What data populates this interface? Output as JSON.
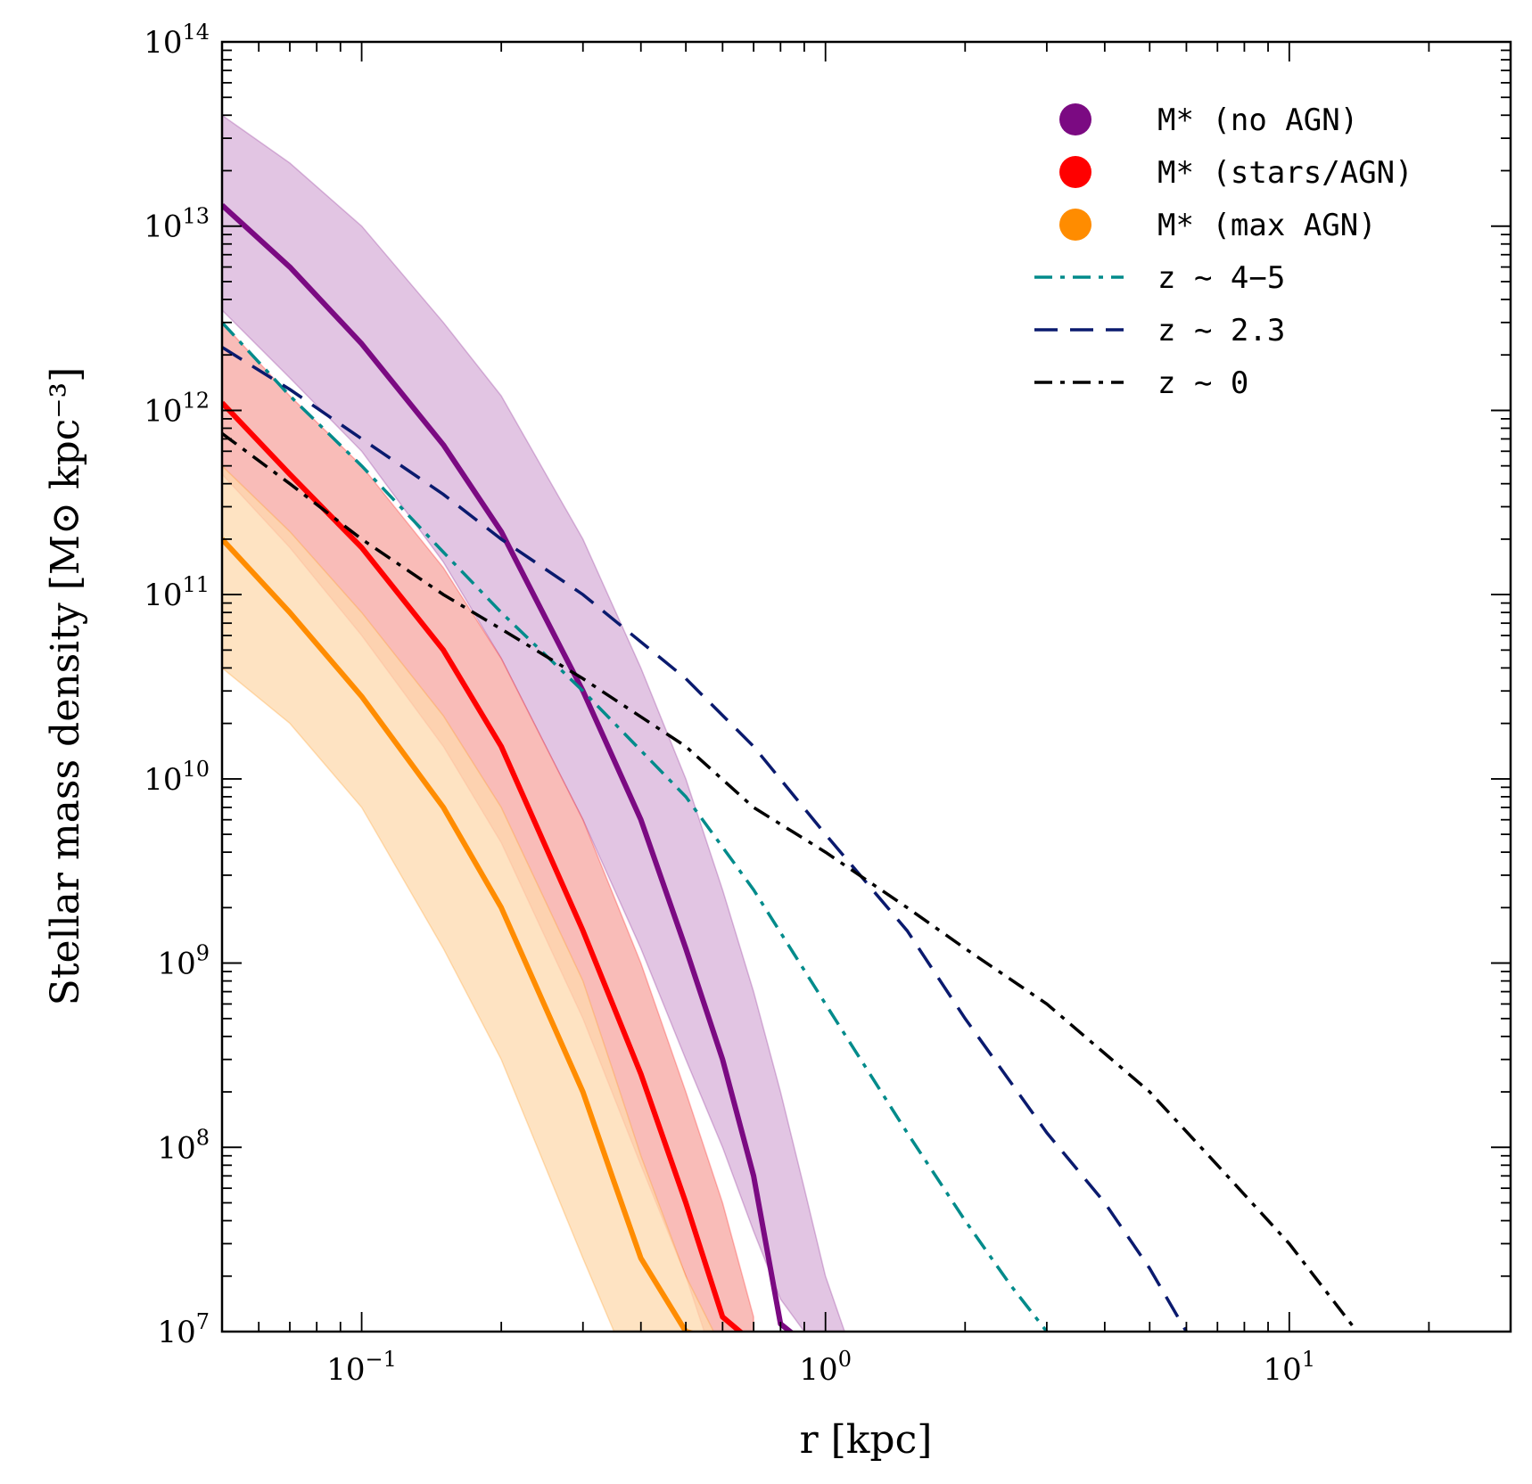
{
  "chart_data": {
    "type": "line",
    "xlabel": "r [kpc]",
    "ylabel": "Stellar mass density [M⊙ kpc⁻³]",
    "xscale": "log",
    "yscale": "log",
    "xlim": [
      0.05,
      30
    ],
    "ylim": [
      10000000.0,
      100000000000000.0
    ],
    "grid": false,
    "legend_position": "top-right",
    "x_tick_labels": [
      {
        "value": 0.1,
        "base": "10",
        "exp": "−1"
      },
      {
        "value": 1,
        "base": "10",
        "exp": "0"
      },
      {
        "value": 10,
        "base": "10",
        "exp": "1"
      }
    ],
    "y_tick_labels": [
      {
        "value": 10000000.0,
        "base": "10",
        "exp": "7"
      },
      {
        "value": 100000000.0,
        "base": "10",
        "exp": "8"
      },
      {
        "value": 1000000000.0,
        "base": "10",
        "exp": "9"
      },
      {
        "value": 10000000000.0,
        "base": "10",
        "exp": "10"
      },
      {
        "value": 100000000000.0,
        "base": "10",
        "exp": "11"
      },
      {
        "value": 1000000000000.0,
        "base": "10",
        "exp": "12"
      },
      {
        "value": 10000000000000.0,
        "base": "10",
        "exp": "13"
      },
      {
        "value": 100000000000000.0,
        "base": "10",
        "exp": "14"
      }
    ],
    "bands": [
      {
        "name": "M* (no AGN)",
        "color": "#7b0a82",
        "fill": "#d8b2da",
        "marker": "circle",
        "x": [
          0.05,
          0.07,
          0.1,
          0.15,
          0.2,
          0.3,
          0.4,
          0.5,
          0.6,
          0.7,
          0.8,
          0.9,
          1.0,
          1.1
        ],
        "lower": [
          3500000000000.0,
          1500000000000.0,
          600000000000.0,
          150000000000.0,
          45000000000.0,
          6000000000.0,
          1200000000.0,
          300000000.0,
          100000000.0,
          35000000.0,
          15000000.0,
          10000000.0,
          null,
          null
        ],
        "median": [
          13000000000000.0,
          6000000000000.0,
          2300000000000.0,
          650000000000.0,
          220000000000.0,
          30000000000.0,
          6000000000.0,
          1200000000.0,
          300000000.0,
          70000000.0,
          11000000.0,
          null,
          null,
          null
        ],
        "upper": [
          40000000000000.0,
          22000000000000.0,
          10000000000000.0,
          3000000000000.0,
          1200000000000.0,
          200000000000.0,
          40000000000.0,
          10000000000.0,
          2500000000.0,
          700000000.0,
          200000000.0,
          60000000.0,
          20000000.0,
          10000000.0
        ]
      },
      {
        "name": "M* (stars/AGN)",
        "color": "#ff0000",
        "fill": "#f7a6a0",
        "marker": "circle",
        "x": [
          0.05,
          0.07,
          0.1,
          0.15,
          0.2,
          0.3,
          0.4,
          0.5,
          0.6,
          0.7
        ],
        "lower": [
          450000000000.0,
          180000000000.0,
          60000000000.0,
          15000000000.0,
          4500000000.0,
          500000000.0,
          80000000.0,
          20000000.0,
          null,
          null
        ],
        "median": [
          1100000000000.0,
          450000000000.0,
          180000000000.0,
          50000000000.0,
          15000000000.0,
          1500000000.0,
          250000000.0,
          50000000.0,
          12000000.0,
          null
        ],
        "upper": [
          3000000000000.0,
          1200000000000.0,
          500000000000.0,
          140000000000.0,
          45000000000.0,
          6000000000.0,
          1000000000.0,
          200000000.0,
          50000000.0,
          12000000.0
        ]
      },
      {
        "name": "M* (max AGN)",
        "color": "#ff8c00",
        "fill": "#fdd9ae",
        "marker": "circle",
        "x": [
          0.05,
          0.07,
          0.1,
          0.15,
          0.2,
          0.3,
          0.35,
          0.4,
          0.5,
          0.6
        ],
        "lower": [
          40000000000.0,
          20000000000.0,
          7000000000.0,
          1200000000.0,
          300000000.0,
          25000000.0,
          10000000.0,
          null,
          null,
          null
        ],
        "median": [
          200000000000.0,
          80000000000.0,
          28000000000.0,
          7000000000.0,
          2000000000.0,
          200000000.0,
          65000000.0,
          25000000.0,
          10000000.0,
          null
        ],
        "upper": [
          500000000000.0,
          220000000000.0,
          80000000000.0,
          22000000000.0,
          7000000000.0,
          800000000.0,
          250000000.0,
          90000000.0,
          20000000.0,
          8000000.0
        ]
      }
    ],
    "series": [
      {
        "name": "z ∼ 4−5",
        "color": "#008b8b",
        "dash": "dashdot",
        "x": [
          0.05,
          0.07,
          0.1,
          0.15,
          0.2,
          0.3,
          0.5,
          0.7,
          1.0,
          1.5,
          2.0,
          2.5,
          3.0
        ],
        "y": [
          3000000000000.0,
          1200000000000.0,
          500000000000.0,
          170000000000.0,
          80000000000.0,
          30000000000.0,
          8000000000.0,
          2500000000.0,
          600000000.0,
          120000000.0,
          40000000.0,
          18000000.0,
          10000000.0
        ]
      },
      {
        "name": "z ∼ 2.3",
        "color": "#0a1a6e",
        "dash": "dashed",
        "x": [
          0.05,
          0.07,
          0.1,
          0.15,
          0.2,
          0.3,
          0.5,
          0.7,
          1.0,
          1.5,
          2.0,
          3.0,
          4.0,
          5.0,
          6.0
        ],
        "y": [
          2200000000000.0,
          1300000000000.0,
          700000000000.0,
          350000000000.0,
          200000000000.0,
          100000000000.0,
          35000000000.0,
          15000000000.0,
          5000000000.0,
          1500000000.0,
          500000000.0,
          120000000.0,
          50000000.0,
          22000000.0,
          10000000.0
        ]
      },
      {
        "name": "z ∼ 0",
        "color": "#000000",
        "dash": "dashdot",
        "x": [
          0.05,
          0.07,
          0.1,
          0.15,
          0.2,
          0.3,
          0.5,
          0.7,
          1.0,
          1.5,
          2.0,
          3.0,
          5.0,
          7.0,
          10.0,
          14.0
        ],
        "y": [
          750000000000.0,
          400000000000.0,
          200000000000.0,
          100000000000.0,
          65000000000.0,
          35000000000.0,
          15000000000.0,
          7000000000.0,
          4000000000.0,
          2000000000.0,
          1200000000.0,
          600000000.0,
          200000000.0,
          80000000.0,
          30000000.0,
          10000000.0
        ]
      }
    ]
  }
}
